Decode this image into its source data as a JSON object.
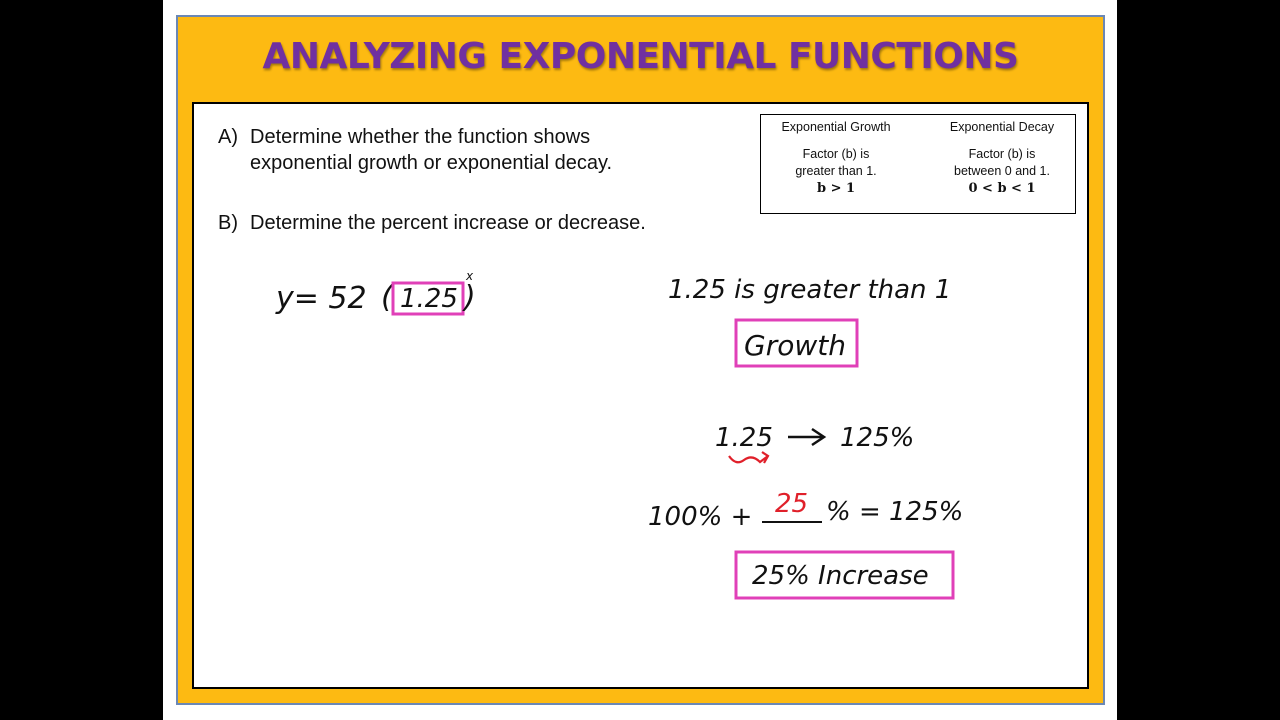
{
  "title": "ANALYZING EXPONENTIAL FUNCTIONS",
  "questions": {
    "a_label": "A)",
    "a_line1": "Determine whether the function shows",
    "a_line2": "exponential growth or exponential decay.",
    "b_label": "B)",
    "b_text": "Determine the percent increase or decrease."
  },
  "reference": {
    "growth": {
      "heading": "Exponential Growth",
      "line1": "Factor (b) is",
      "line2": "greater than 1.",
      "rule": "b > 1"
    },
    "decay": {
      "heading": "Exponential Decay",
      "line1": "Factor (b) is",
      "line2": "between 0 and 1.",
      "rule": "0 < b < 1"
    }
  },
  "work": {
    "equation_lhs": "y= 52",
    "base": "1.25",
    "exponent": "x",
    "comparison": "1.25 is greater than 1",
    "result_a": "Growth",
    "conversion_from": "1.25",
    "conversion_to": "125%",
    "sum_left": "100% +",
    "sum_blank": "25",
    "sum_right": "% = 125%",
    "result_b": "25% Increase"
  },
  "colors": {
    "frame": "#FDBA12",
    "title": "#7030A0",
    "highlight_box": "#E040B8",
    "red_ink": "#E0202A"
  }
}
